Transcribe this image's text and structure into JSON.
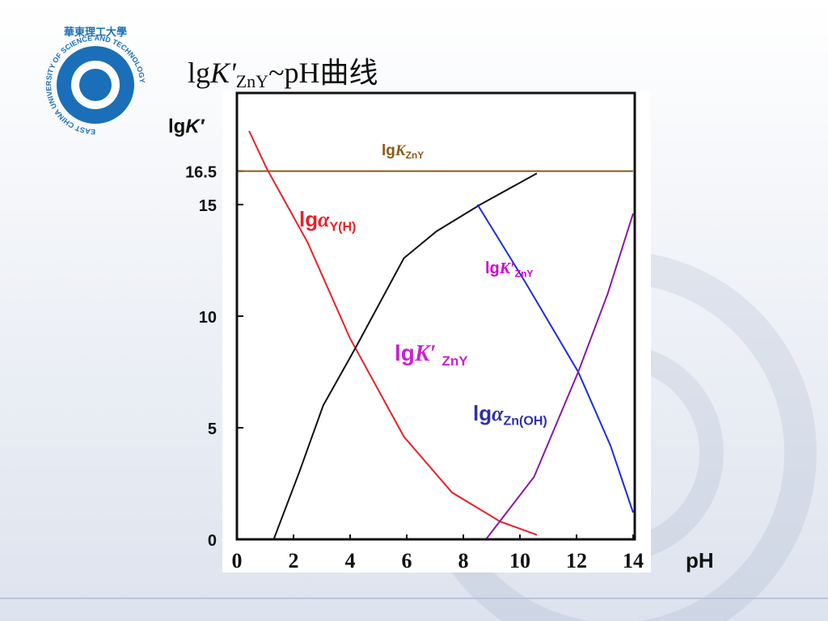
{
  "logo": {
    "chinese": "華東理工大學",
    "english": "EAST CHINA UNIVERSITY OF SCIENCE AND TECHNOLOGY"
  },
  "chart_data": {
    "type": "line",
    "title": {
      "prefix": "lg",
      "symbol": "K'",
      "sub": "ZnY",
      "suffix": "~pH曲线"
    },
    "y_label": {
      "prefix": "lg",
      "symbol": "K′"
    },
    "x_label": "pH",
    "xlim": [
      0,
      14
    ],
    "xticks": [
      0,
      2,
      4,
      6,
      8,
      10,
      12,
      14
    ],
    "ylim": [
      0,
      20
    ],
    "yticks": [
      0,
      5,
      10,
      15,
      16.5
    ],
    "series": [
      {
        "x": [
          0,
          14
        ],
        "values": [
          16.5,
          16.5
        ],
        "color": "#8b5a1a",
        "label": {
          "prefix": "lg",
          "symbol": "K",
          "sub": "ZnY"
        },
        "label_color": "#8b5a1a"
      },
      {
        "x": [
          0.43,
          1.06,
          2.5,
          4.0,
          5.9,
          7.6,
          9.3,
          10.6
        ],
        "values": [
          18.3,
          16.6,
          13.3,
          9.0,
          4.6,
          2.1,
          0.8,
          0.2
        ],
        "color": "#e8202a",
        "label": {
          "prefix": "lg",
          "symbol": "α",
          "sub": "Y(H)"
        },
        "label_color": "#e8202a"
      },
      {
        "x": [
          1.3,
          2.2,
          3.05,
          4.2,
          5.9,
          7.05,
          8.6,
          10.6
        ],
        "values": [
          0,
          3.0,
          6.0,
          8.6,
          12.6,
          13.8,
          15.0,
          16.4
        ],
        "color": "#111111",
        "label": {
          "prefix": "lg",
          "symbol": "K′ ",
          "sub": "ZnY"
        },
        "label_color": "#cc22cc"
      },
      {
        "x": [
          8.5,
          10.2,
          12.06,
          13.2,
          14
        ],
        "values": [
          15.0,
          11.5,
          7.5,
          4.2,
          1.2
        ],
        "color": "#1a2ee0",
        "label": {
          "prefix": "lg",
          "symbol": "K′",
          "sub": "ZnY"
        },
        "label_color": "#cc00cc"
      },
      {
        "x": [
          8.8,
          10.5,
          12.06,
          13.1,
          14
        ],
        "values": [
          0,
          2.8,
          7.5,
          11.0,
          14.6
        ],
        "color": "#8a1aa0",
        "label": {
          "prefix": "lg",
          "symbol": "α",
          "sub": "Zn(OH)"
        },
        "label_color": "#3030a8"
      }
    ]
  }
}
